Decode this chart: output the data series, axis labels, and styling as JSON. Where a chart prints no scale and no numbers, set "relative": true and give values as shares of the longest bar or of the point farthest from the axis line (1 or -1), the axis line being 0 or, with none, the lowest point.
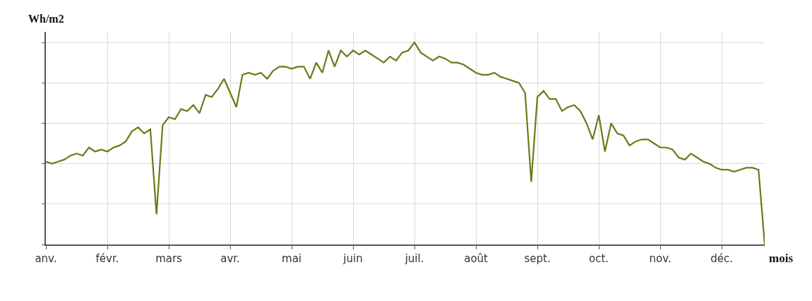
{
  "chart_data": {
    "type": "line",
    "relative": true,
    "ylabel": "Wh/m2",
    "xlabel": "mois",
    "grid": true,
    "line_style": "solid",
    "marker": "none",
    "categories": [
      "anv.",
      null,
      null,
      null,
      null,
      null,
      null,
      null,
      null,
      null,
      "févr.",
      null,
      null,
      null,
      null,
      null,
      null,
      null,
      null,
      null,
      "mars",
      null,
      null,
      null,
      null,
      null,
      null,
      null,
      null,
      null,
      "avr.",
      null,
      null,
      null,
      null,
      null,
      null,
      null,
      null,
      null,
      "mai",
      null,
      null,
      null,
      null,
      null,
      null,
      null,
      null,
      null,
      "juin",
      null,
      null,
      null,
      null,
      null,
      null,
      null,
      null,
      null,
      "juil.",
      null,
      null,
      null,
      null,
      null,
      null,
      null,
      null,
      null,
      "août",
      null,
      null,
      null,
      null,
      null,
      null,
      null,
      null,
      null,
      "sept.",
      null,
      null,
      null,
      null,
      null,
      null,
      null,
      null,
      null,
      "oct.",
      null,
      null,
      null,
      null,
      null,
      null,
      null,
      null,
      null,
      "nov.",
      null,
      null,
      null,
      null,
      null,
      null,
      null,
      null,
      null,
      "déc.",
      null,
      null,
      null,
      null,
      null,
      null,
      null
    ],
    "series": [
      {
        "color": "#6b7a1a",
        "values": [
          0.41,
          0.4,
          0.41,
          0.42,
          0.44,
          0.45,
          0.44,
          0.48,
          0.46,
          0.47,
          0.46,
          0.48,
          0.49,
          0.51,
          0.56,
          0.58,
          0.55,
          0.57,
          0.15,
          0.59,
          0.63,
          0.62,
          0.67,
          0.66,
          0.69,
          0.65,
          0.74,
          0.73,
          0.77,
          0.82,
          0.75,
          0.68,
          0.84,
          0.85,
          0.84,
          0.85,
          0.82,
          0.86,
          0.88,
          0.88,
          0.87,
          0.88,
          0.88,
          0.82,
          0.9,
          0.85,
          0.96,
          0.88,
          0.96,
          0.93,
          0.96,
          0.94,
          0.96,
          0.94,
          0.92,
          0.9,
          0.93,
          0.91,
          0.95,
          0.96,
          1,
          0.95,
          0.93,
          0.91,
          0.93,
          0.92,
          0.9,
          0.9,
          0.89,
          0.87,
          0.85,
          0.84,
          0.84,
          0.85,
          0.83,
          0.82,
          0.81,
          0.8,
          0.75,
          0.31,
          0.73,
          0.76,
          0.72,
          0.72,
          0.66,
          0.68,
          0.69,
          0.66,
          0.6,
          0.52,
          0.64,
          0.46,
          0.6,
          0.55,
          0.54,
          0.49,
          0.51,
          0.52,
          0.52,
          0.5,
          0.48,
          0.48,
          0.47,
          0.43,
          0.42,
          0.45,
          0.43,
          0.41,
          0.4,
          0.38,
          0.37,
          0.37,
          0.36,
          0.37,
          0.38,
          0.38,
          0.37,
          0
        ]
      }
    ]
  }
}
